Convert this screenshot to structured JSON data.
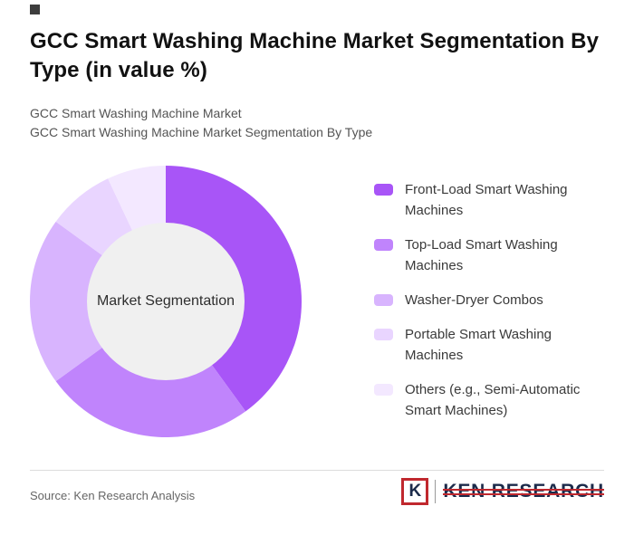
{
  "header": {
    "title": "GCC Smart Washing Machine Market Segmentation By Type (in value %)",
    "subtitle_line1": "GCC Smart Washing Machine Market",
    "subtitle_line2": "GCC Smart Washing Machine Market Segmentation By Type"
  },
  "chart_data": {
    "type": "pie",
    "variant": "donut",
    "title": "GCC Smart Washing Machine Market Segmentation By Type (in value %)",
    "unit": "value %",
    "center_label": "Market Segmentation",
    "legend_position": "right",
    "labels": [
      "Front-Load Smart Washing Machines",
      "Top-Load Smart Washing Machines",
      "Washer-Dryer Combos",
      "Portable Smart Washing Machines",
      "Others (e.g., Semi-Automatic Smart Machines)"
    ],
    "values": [
      40,
      25,
      20,
      8,
      7
    ],
    "colors": [
      "#a855f7",
      "#c084fc",
      "#d8b4fe",
      "#e9d5ff",
      "#f3e8ff"
    ],
    "start_angle_deg": 0,
    "direction": "clockwise",
    "inner_radius_ratio": 0.58,
    "center_fill": "#f0f0f0"
  },
  "footer": {
    "source": "Source: Ken Research Analysis",
    "logo": {
      "letter": "K",
      "brand": "KEN RESEARCH",
      "accent_color": "#c0282e",
      "text_color": "#1b2a4a"
    }
  }
}
